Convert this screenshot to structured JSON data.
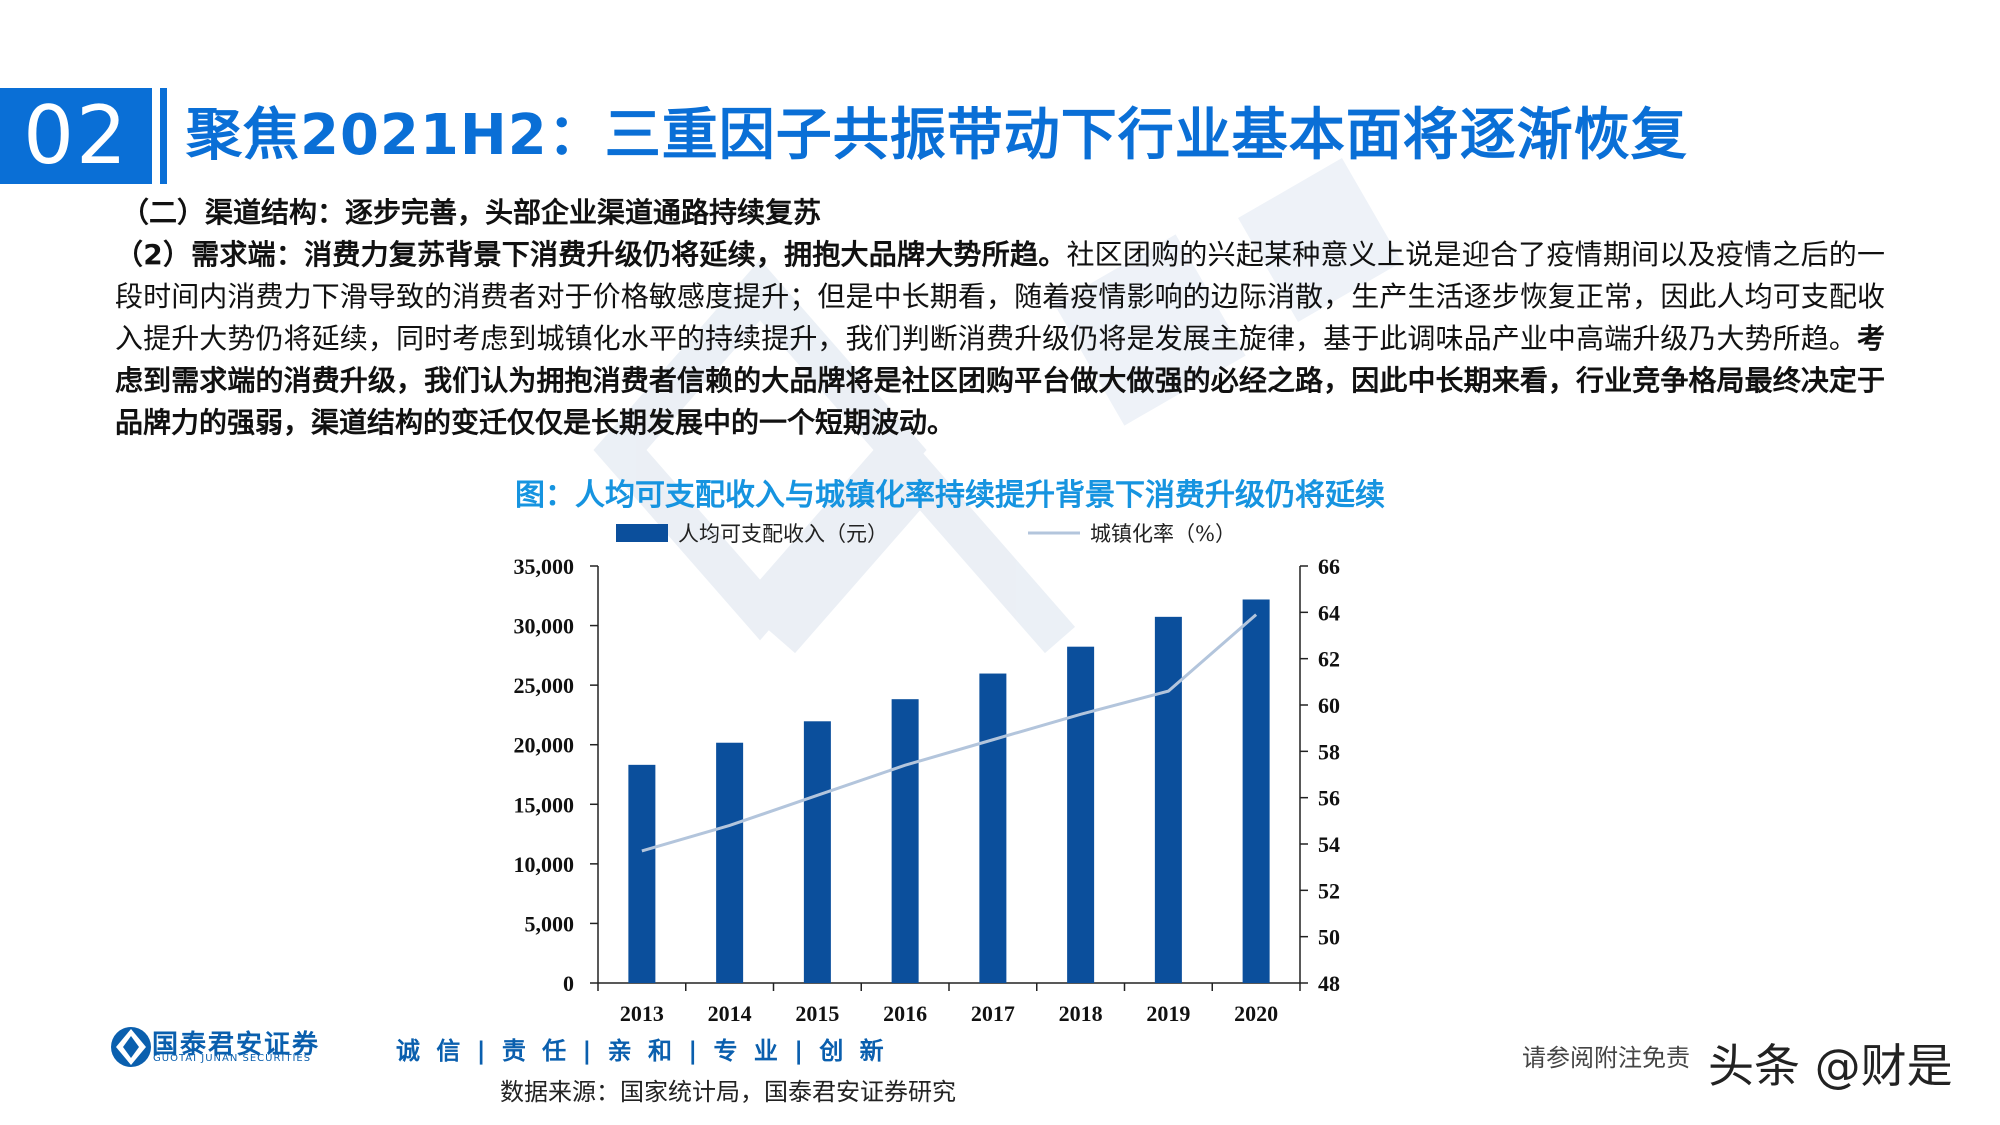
{
  "header": {
    "section_number": "02",
    "title": "聚焦2021H2：三重因子共振带动下行业基本面将逐渐恢复"
  },
  "content": {
    "subheading": "（二）渠道结构：逐步完善，头部企业渠道通路持续复苏",
    "para_bold_1": "（2）需求端：消费力复苏背景下消费升级仍将延续，拥抱大品牌大势所趋。",
    "para_text": "社区团购的兴起某种意义上说是迎合了疫情期间以及疫情之后的一段时间内消费力下滑导致的消费者对于价格敏感度提升；但是中长期看，随着疫情影响的边际消散，生产生活逐步恢复正常，因此人均可支配收入提升大势仍将延续，同时考虑到城镇化水平的持续提升，我们判断消费升级仍将是发展主旋律，基于此调味品产业中高端升级乃大势所趋。",
    "para_bold_2": "考虑到需求端的消费升级，我们认为拥抱消费者信赖的大品牌将是社区团购平台做大做强的必经之路，因此中长期来看，行业竞争格局最终决定于品牌力的强弱，渠道结构的变迁仅仅是长期发展中的一个短期波动。"
  },
  "chart_title": "图：人均可支配收入与城镇化率持续提升背景下消费升级仍将延续",
  "chart_data": {
    "type": "bar",
    "categories": [
      "2013",
      "2014",
      "2015",
      "2016",
      "2017",
      "2018",
      "2019",
      "2020"
    ],
    "series": [
      {
        "name": "人均可支配收入（元）",
        "type": "bar",
        "axis": "left",
        "color": "#0b4f9c",
        "values": [
          18311,
          20167,
          21966,
          23821,
          25974,
          28228,
          30733,
          32189
        ]
      },
      {
        "name": "城镇化率（%）",
        "type": "line",
        "axis": "right",
        "color": "#b3c5dc",
        "values": [
          53.7,
          54.8,
          56.1,
          57.4,
          58.5,
          59.6,
          60.6,
          63.9
        ]
      }
    ],
    "y_left": {
      "min": 0,
      "max": 35000,
      "ticks": [
        "0",
        "5,000",
        "10,000",
        "15,000",
        "20,000",
        "25,000",
        "30,000",
        "35,000"
      ]
    },
    "y_right": {
      "min": 48,
      "max": 66,
      "ticks": [
        "48",
        "50",
        "52",
        "54",
        "56",
        "58",
        "60",
        "62",
        "64",
        "66"
      ]
    },
    "legend_position": "top",
    "grid": false
  },
  "footer": {
    "brand_cn": "国泰君安证券",
    "brand_en": "GUOTAI JUNAN SECURITIES",
    "slogan": "诚 信 | 责 任 | 亲 和 | 专 业 | 创 新",
    "disclaimer": "请参阅附注免责",
    "social": "头条 @财是",
    "source": "数据来源：国家统计局，国泰君安证券研究"
  },
  "colors": {
    "accent": "#0a6fd6",
    "bar": "#0b4f9c",
    "line": "#b3c5dc",
    "chart_title": "#1694e0"
  }
}
